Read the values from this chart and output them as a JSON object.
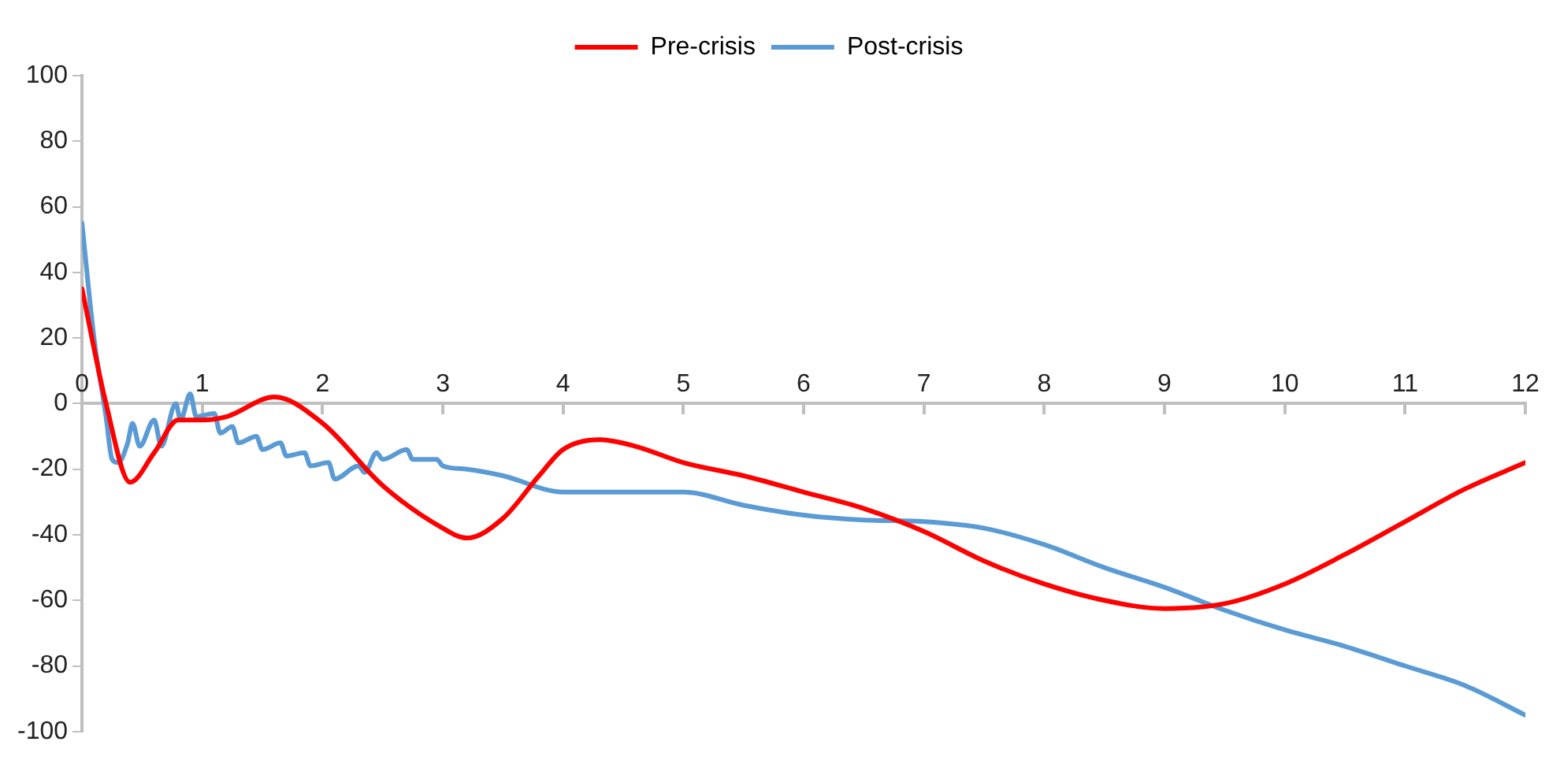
{
  "chart_data": {
    "type": "line",
    "legend": "top",
    "grid": false,
    "marker": "none",
    "line_style": "solid",
    "xlim": [
      0,
      12
    ],
    "xticks": [
      0,
      1,
      2,
      3,
      4,
      5,
      6,
      7,
      8,
      9,
      10,
      11,
      12
    ],
    "ylim": [
      -100,
      100
    ],
    "yticks": [
      -100,
      -80,
      -60,
      -40,
      -20,
      0,
      20,
      40,
      60,
      80,
      100
    ],
    "series": [
      {
        "name": "Pre-crisis",
        "color": "#ff0000",
        "x": [
          0,
          0.2,
          0.4,
          0.6,
          0.8,
          1,
          1.2,
          1.6,
          2,
          2.5,
          3,
          3.2,
          3.5,
          3.8,
          4,
          4.3,
          4.6,
          5,
          5.5,
          6,
          6.5,
          7,
          7.5,
          8,
          8.5,
          9,
          9.5,
          10,
          10.5,
          11,
          11.5,
          12
        ],
        "values": [
          35,
          0,
          -24,
          -15,
          -5,
          -5,
          -4,
          2,
          -6,
          -25,
          -38,
          -41,
          -35,
          -22,
          -14,
          -11,
          -13,
          -18,
          -22,
          -27,
          -32,
          -39,
          -48,
          -55,
          -60,
          -62.5,
          -61,
          -55,
          -46,
          -36,
          -26,
          -18
        ]
      },
      {
        "name": "Post-crisis",
        "color": "#5b9bd5",
        "x": [
          0,
          0.1,
          0.2,
          0.25,
          0.3,
          0.38,
          0.42,
          0.48,
          0.6,
          0.66,
          0.78,
          0.82,
          0.9,
          0.95,
          1.1,
          1.15,
          1.25,
          1.3,
          1.45,
          1.5,
          1.65,
          1.7,
          1.85,
          1.9,
          2.05,
          2.1,
          2.3,
          2.35,
          2.45,
          2.5,
          2.7,
          2.75,
          2.95,
          3,
          3.2,
          3.5,
          4,
          4.5,
          5,
          5.5,
          6,
          6.5,
          7,
          7.5,
          8,
          8.5,
          9,
          9.5,
          10,
          10.5,
          11,
          11.5,
          12
        ],
        "values": [
          55,
          20,
          -4,
          -17,
          -18,
          -12,
          -6,
          -13,
          -5,
          -13,
          0,
          -5,
          3,
          -4,
          -3,
          -9,
          -7,
          -12,
          -10,
          -14,
          -12,
          -16,
          -15,
          -19,
          -18,
          -23,
          -19,
          -21,
          -15,
          -17,
          -14,
          -17,
          -17,
          -19,
          -20,
          -22,
          -27,
          -27,
          -27,
          -31,
          -34,
          -35.5,
          -36,
          -38,
          -43,
          -50,
          -56,
          -63,
          -69,
          -74,
          -80,
          -86,
          -95
        ]
      }
    ]
  }
}
